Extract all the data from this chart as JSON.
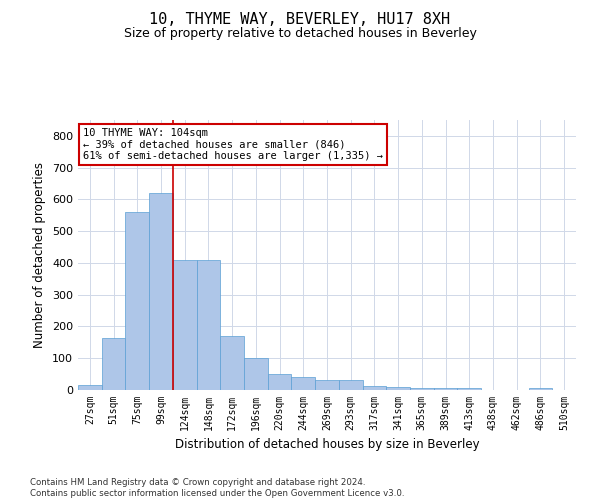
{
  "title": "10, THYME WAY, BEVERLEY, HU17 8XH",
  "subtitle": "Size of property relative to detached houses in Beverley",
  "xlabel": "Distribution of detached houses by size in Beverley",
  "ylabel": "Number of detached properties",
  "footnote": "Contains HM Land Registry data © Crown copyright and database right 2024.\nContains public sector information licensed under the Open Government Licence v3.0.",
  "categories": [
    "27sqm",
    "51sqm",
    "75sqm",
    "99sqm",
    "124sqm",
    "148sqm",
    "172sqm",
    "196sqm",
    "220sqm",
    "244sqm",
    "269sqm",
    "293sqm",
    "317sqm",
    "341sqm",
    "365sqm",
    "389sqm",
    "413sqm",
    "438sqm",
    "462sqm",
    "486sqm",
    "510sqm"
  ],
  "values": [
    15,
    165,
    560,
    620,
    410,
    410,
    170,
    100,
    50,
    40,
    30,
    30,
    12,
    10,
    7,
    5,
    5,
    0,
    0,
    5,
    0
  ],
  "bar_color": "#aec6e8",
  "bar_edge_color": "#5a9fd4",
  "vline_x_index": 3.5,
  "vline_color": "#cc0000",
  "annotation_text": "10 THYME WAY: 104sqm\n← 39% of detached houses are smaller (846)\n61% of semi-detached houses are larger (1,335) →",
  "annotation_box_color": "#ffffff",
  "annotation_box_edge": "#cc0000",
  "ylim": [
    0,
    850
  ],
  "yticks": [
    0,
    100,
    200,
    300,
    400,
    500,
    600,
    700,
    800
  ],
  "bg_color": "#ffffff",
  "grid_color": "#d0d8e8"
}
